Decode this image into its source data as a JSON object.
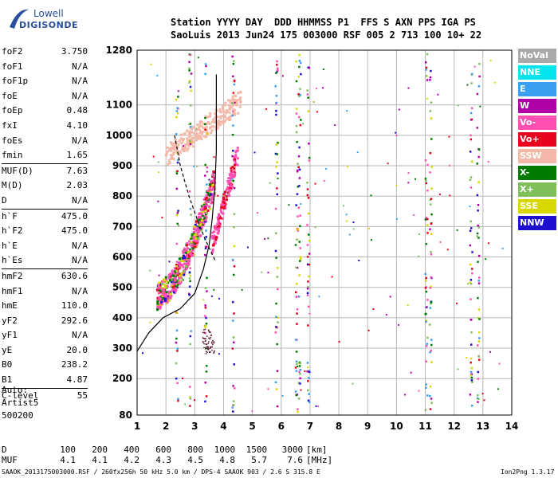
{
  "logo": {
    "line1": "Lowell",
    "line2": "DIGISONDE"
  },
  "header": {
    "line1": "Station YYYY DAY  DDD HHMMSS P1  FFS S AXN PPS IGA PS",
    "line2": "SaoLuis 2013 Jun24 175 003000 RSF 005 2 713 100 10+ 22"
  },
  "params": [
    {
      "name": "foF2",
      "value": "3.750"
    },
    {
      "name": "foF1",
      "value": "N/A"
    },
    {
      "name": "foF1p",
      "value": "N/A"
    },
    {
      "name": "foE",
      "value": "N/A"
    },
    {
      "name": "foEp",
      "value": "0.48"
    },
    {
      "name": "fxI",
      "value": "4.10"
    },
    {
      "name": "foEs",
      "value": "N/A"
    },
    {
      "name": "fmin",
      "value": "1.65"
    },
    {
      "name": "MUF(D)",
      "value": "7.63",
      "sep": true
    },
    {
      "name": "M(D)",
      "value": "2.03"
    },
    {
      "name": "D",
      "value": "N/A"
    },
    {
      "name": "h`F",
      "value": "475.0",
      "sep": true
    },
    {
      "name": "h`F2",
      "value": "475.0"
    },
    {
      "name": "h`E",
      "value": "N/A"
    },
    {
      "name": "h`Es",
      "value": "N/A"
    },
    {
      "name": "hmF2",
      "value": "630.6",
      "sep": true
    },
    {
      "name": "hmF1",
      "value": "N/A"
    },
    {
      "name": "hmE",
      "value": "110.0"
    },
    {
      "name": "yF2",
      "value": "292.6"
    },
    {
      "name": "yF1",
      "value": "N/A"
    },
    {
      "name": "yE",
      "value": "20.0"
    },
    {
      "name": "B0",
      "value": "238.2"
    },
    {
      "name": "B1",
      "value": "4.87"
    },
    {
      "name": "C-level",
      "value": "55",
      "sep": true
    }
  ],
  "auto": {
    "line1": "Auto:",
    "line2": "Artist5",
    "line3": "500200"
  },
  "legend": [
    {
      "label": "NoVal",
      "color": "#a9a9a9"
    },
    {
      "label": "NNE",
      "color": "#00e5ee"
    },
    {
      "label": "E",
      "color": "#3a9ff0"
    },
    {
      "label": "W",
      "color": "#b000a8"
    },
    {
      "label": "Vo-",
      "color": "#ff4fb3"
    },
    {
      "label": "Vo+",
      "color": "#e8001c"
    },
    {
      "label": "SSW",
      "color": "#f4b8a8"
    },
    {
      "label": "X-",
      "color": "#007a00"
    },
    {
      "label": "X+",
      "color": "#7fbf5a"
    },
    {
      "label": "SSE",
      "color": "#d8d800"
    },
    {
      "label": "NNW",
      "color": "#1c0fd0"
    }
  ],
  "muf_table": {
    "d_label": "D",
    "d_values": [
      "100",
      "200",
      "400",
      "600",
      "800",
      "1000",
      "1500",
      "3000"
    ],
    "d_unit": "[km]",
    "muf_label": "MUF",
    "muf_values": [
      "4.1",
      "4.1",
      "4.2",
      "4.3",
      "4.5",
      "4.8",
      "5.7",
      "7.6"
    ],
    "muf_unit": "[MHz]"
  },
  "footer": {
    "source": "SAAOK_2013175003000.RSF / 260fx256h 50 kHz 5.0 km / DPS-4 SAAOK 903 / 2.6 S 315.8 E",
    "version": "Ion2Png 1.3.17"
  },
  "chart_data": {
    "type": "scatter",
    "x_ticks": [
      1,
      2,
      3,
      4,
      5,
      6,
      7,
      8,
      9,
      10,
      11,
      12,
      13,
      14
    ],
    "y_ticks": [
      80,
      200,
      300,
      400,
      500,
      600,
      700,
      800,
      900,
      1000,
      1100,
      1280
    ],
    "xlim": [
      1,
      14
    ],
    "ylim": [
      80,
      1280
    ],
    "grid": true,
    "profile_x": [
      1.0,
      1.4,
      1.9,
      2.5,
      3.0,
      3.3,
      3.5,
      3.6,
      3.7,
      3.75,
      3.75
    ],
    "profile_y": [
      290,
      350,
      400,
      430,
      480,
      560,
      640,
      720,
      830,
      950,
      1200
    ],
    "vh_curve_x": [
      2.3,
      2.5,
      2.8,
      3.1,
      3.35,
      3.55,
      3.7
    ],
    "vh_curve_y": [
      1000,
      900,
      800,
      720,
      660,
      620,
      590
    ]
  }
}
